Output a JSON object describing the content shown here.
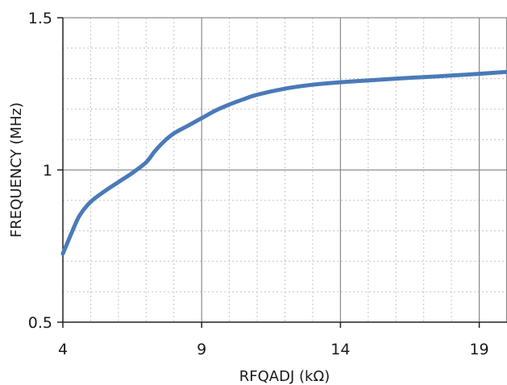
{
  "chart_data": {
    "type": "line",
    "title": "",
    "xlabel": "RFQADJ (kΩ)",
    "ylabel": "FREQUENCY (MHz)",
    "xlim": [
      4,
      20
    ],
    "ylim": [
      0.5,
      1.5
    ],
    "x_ticks": [
      4,
      9,
      14,
      19
    ],
    "x_tick_labels": [
      "4",
      "9",
      "14",
      "19"
    ],
    "y_ticks": [
      0.5,
      1,
      1.5
    ],
    "y_tick_labels": [
      "0.5",
      "1",
      "1.5"
    ],
    "x_minor_step": 1,
    "y_minor_step": 0.1,
    "grid": true,
    "line_color": "#4a7ab8",
    "series": [
      {
        "x": [
          4,
          4.3,
          4.6,
          5,
          5.5,
          6,
          6.5,
          7,
          7.3,
          7.6,
          8,
          8.5,
          9,
          9.5,
          10,
          10.5,
          11,
          12,
          13,
          14,
          15,
          16,
          17,
          18,
          19,
          20
        ],
        "y": [
          0.725,
          0.79,
          0.85,
          0.895,
          0.93,
          0.96,
          0.99,
          1.025,
          1.06,
          1.09,
          1.12,
          1.145,
          1.17,
          1.195,
          1.215,
          1.232,
          1.247,
          1.267,
          1.28,
          1.288,
          1.294,
          1.3,
          1.305,
          1.31,
          1.316,
          1.322
        ]
      }
    ]
  }
}
